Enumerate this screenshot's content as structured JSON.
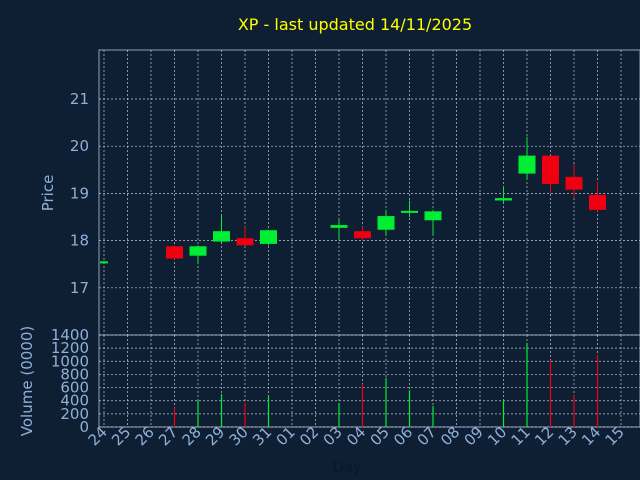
{
  "chart_data": [
    {
      "type": "candlestick",
      "title": "XP - last updated 14/11/2025",
      "ylabel": "Price",
      "ylim": [
        16.0,
        21.0
      ],
      "yticks": [
        17,
        18,
        19,
        20,
        21
      ],
      "grid": true,
      "colors": {
        "up": "#00ee33",
        "down": "#ee0011",
        "background": "#0f1f33",
        "title": "#ffff00",
        "labels": "#8fb0d8"
      },
      "x": [
        "24",
        "25",
        "26",
        "27",
        "28",
        "29",
        "30",
        "31",
        "01",
        "02",
        "03",
        "04",
        "05",
        "06",
        "07",
        "08",
        "09",
        "10",
        "11",
        "12",
        "13",
        "14",
        "15"
      ],
      "candles": [
        {
          "x": "24",
          "open": 17.53,
          "high": 17.57,
          "low": 17.53,
          "close": 17.56
        },
        {
          "x": "27",
          "open": 17.88,
          "high": 17.9,
          "low": 17.6,
          "close": 17.62
        },
        {
          "x": "28",
          "open": 17.68,
          "high": 17.9,
          "low": 17.5,
          "close": 17.88
        },
        {
          "x": "29",
          "open": 17.98,
          "high": 18.55,
          "low": 17.97,
          "close": 18.2
        },
        {
          "x": "30",
          "open": 18.05,
          "high": 18.3,
          "low": 17.88,
          "close": 17.9
        },
        {
          "x": "31",
          "open": 17.93,
          "high": 18.23,
          "low": 17.9,
          "close": 18.22
        },
        {
          "x": "03",
          "open": 18.27,
          "high": 18.45,
          "low": 18.0,
          "close": 18.33
        },
        {
          "x": "04",
          "open": 18.2,
          "high": 18.3,
          "low": 18.0,
          "close": 18.05
        },
        {
          "x": "05",
          "open": 18.23,
          "high": 18.65,
          "low": 18.1,
          "close": 18.52
        },
        {
          "x": "06",
          "open": 18.6,
          "high": 18.85,
          "low": 18.5,
          "close": 18.63
        },
        {
          "x": "07",
          "open": 18.43,
          "high": 18.65,
          "low": 18.1,
          "close": 18.62
        },
        {
          "x": "10",
          "open": 18.85,
          "high": 19.12,
          "low": 18.8,
          "close": 18.9
        },
        {
          "x": "11",
          "open": 19.42,
          "high": 20.2,
          "low": 19.3,
          "close": 19.8
        },
        {
          "x": "12",
          "open": 19.8,
          "high": 19.8,
          "low": 19.0,
          "close": 19.2
        },
        {
          "x": "13",
          "open": 19.35,
          "high": 19.62,
          "low": 18.9,
          "close": 19.08
        },
        {
          "x": "14",
          "open": 18.97,
          "high": 19.25,
          "low": 18.62,
          "close": 18.65
        }
      ]
    },
    {
      "type": "bar",
      "ylabel": "Volume (0000)",
      "xlabel": "Day",
      "ylim": [
        0,
        1400
      ],
      "yticks": [
        0,
        200,
        400,
        600,
        800,
        1000,
        1200,
        1400
      ],
      "grid": true,
      "x": [
        "24",
        "25",
        "26",
        "27",
        "28",
        "29",
        "30",
        "31",
        "01",
        "02",
        "03",
        "04",
        "05",
        "06",
        "07",
        "08",
        "09",
        "10",
        "11",
        "12",
        "13",
        "14",
        "15"
      ],
      "bars": [
        {
          "x": "27",
          "value": 300,
          "direction": "down"
        },
        {
          "x": "28",
          "value": 400,
          "direction": "up"
        },
        {
          "x": "29",
          "value": 500,
          "direction": "up"
        },
        {
          "x": "30",
          "value": 370,
          "direction": "down"
        },
        {
          "x": "31",
          "value": 480,
          "direction": "up"
        },
        {
          "x": "03",
          "value": 370,
          "direction": "up"
        },
        {
          "x": "04",
          "value": 650,
          "direction": "down"
        },
        {
          "x": "05",
          "value": 750,
          "direction": "up"
        },
        {
          "x": "06",
          "value": 560,
          "direction": "up"
        },
        {
          "x": "07",
          "value": 320,
          "direction": "up"
        },
        {
          "x": "10",
          "value": 420,
          "direction": "up"
        },
        {
          "x": "11",
          "value": 1280,
          "direction": "up"
        },
        {
          "x": "12",
          "value": 1020,
          "direction": "down"
        },
        {
          "x": "13",
          "value": 480,
          "direction": "down"
        },
        {
          "x": "14",
          "value": 1100,
          "direction": "down"
        }
      ]
    }
  ]
}
